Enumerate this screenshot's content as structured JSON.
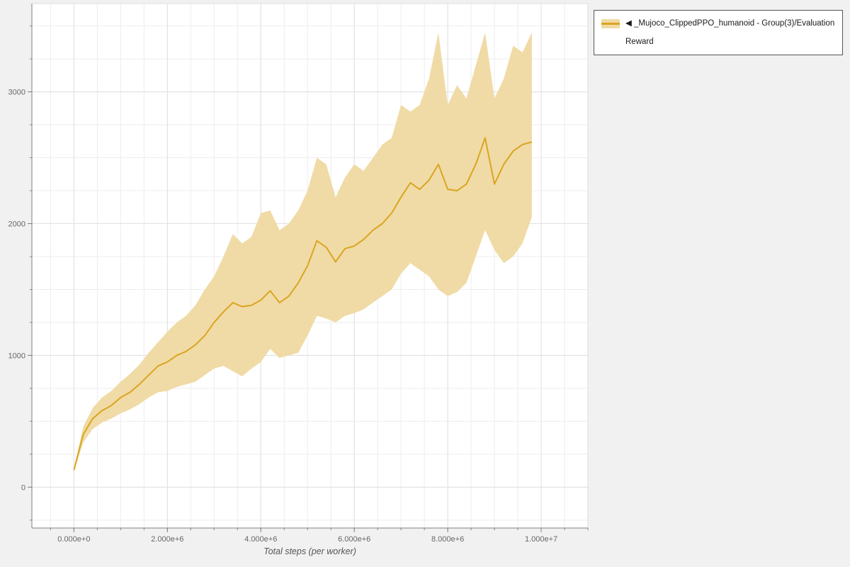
{
  "page": {
    "background_color": "#f1f1f1"
  },
  "legend": {
    "label": "◀ _Mujoco_ClippedPPO_humanoid - Group(3)/Evaluation Reward",
    "series_color": "#DAA520",
    "band_color": "#F0DBA6"
  },
  "chart_data": {
    "type": "line",
    "title": "",
    "xlabel": "Total steps (per worker)",
    "ylabel": "",
    "grid": {
      "x_minor_step": 500000,
      "y_minor_step": 250,
      "grid_on": true
    },
    "legend_position": "top-right-outside",
    "x_scale": 1000000,
    "xlim": [
      -900000,
      11000000
    ],
    "ylim": [
      -310,
      3670
    ],
    "x_ticks": {
      "values": [
        0,
        2000000,
        4000000,
        6000000,
        8000000,
        10000000
      ],
      "labels": [
        "0.000e+0",
        "2.000e+6",
        "4.000e+6",
        "6.000e+6",
        "8.000e+6",
        "1.000e+7"
      ]
    },
    "y_ticks": {
      "values": [
        0,
        1000,
        2000,
        3000
      ],
      "labels": [
        "0",
        "1000",
        "2000",
        "3000"
      ]
    },
    "series": [
      {
        "name": "_Mujoco_ClippedPPO_humanoid - Group(3)/Evaluation Reward",
        "color": "#DAA520",
        "band_color": "#F0DBA6",
        "x_millions": [
          0,
          0.2,
          0.4,
          0.6,
          0.8,
          1,
          1.2,
          1.4,
          1.6,
          1.8,
          2,
          2.2,
          2.4,
          2.6,
          2.8,
          3,
          3.2,
          3.4,
          3.6,
          3.8,
          4,
          4.2,
          4.4,
          4.6,
          4.8,
          5,
          5.2,
          5.4,
          5.6,
          5.8,
          6,
          6.2,
          6.4,
          6.6,
          6.8,
          7,
          7.2,
          7.4,
          7.6,
          7.8,
          8,
          8.2,
          8.4,
          8.6,
          8.8,
          9,
          9.2,
          9.4,
          9.6,
          9.8
        ],
        "mean": [
          130,
          400,
          520,
          580,
          620,
          680,
          720,
          780,
          850,
          920,
          950,
          1000,
          1030,
          1080,
          1150,
          1250,
          1330,
          1400,
          1370,
          1380,
          1420,
          1490,
          1400,
          1450,
          1550,
          1680,
          1870,
          1820,
          1710,
          1810,
          1830,
          1880,
          1950,
          2000,
          2080,
          2200,
          2310,
          2260,
          2330,
          2450,
          2260,
          2250,
          2300,
          2450,
          2650,
          2300,
          2450,
          2550,
          2600,
          2620
        ],
        "band_lower": [
          120,
          340,
          440,
          490,
          520,
          560,
          590,
          630,
          680,
          720,
          730,
          760,
          780,
          800,
          850,
          900,
          920,
          880,
          840,
          900,
          950,
          1050,
          980,
          1000,
          1020,
          1150,
          1300,
          1280,
          1250,
          1300,
          1320,
          1350,
          1400,
          1450,
          1500,
          1620,
          1700,
          1650,
          1600,
          1500,
          1450,
          1480,
          1550,
          1750,
          1950,
          1800,
          1700,
          1750,
          1850,
          2050
        ],
        "band_upper": [
          145,
          460,
          600,
          680,
          730,
          800,
          860,
          930,
          1020,
          1100,
          1180,
          1250,
          1300,
          1380,
          1500,
          1600,
          1750,
          1920,
          1850,
          1900,
          2080,
          2100,
          1950,
          2000,
          2100,
          2250,
          2500,
          2450,
          2200,
          2350,
          2450,
          2400,
          2500,
          2600,
          2650,
          2900,
          2850,
          2900,
          3100,
          3450,
          2900,
          3050,
          2950,
          3200,
          3450,
          2950,
          3100,
          3350,
          3300,
          3450
        ]
      }
    ]
  }
}
